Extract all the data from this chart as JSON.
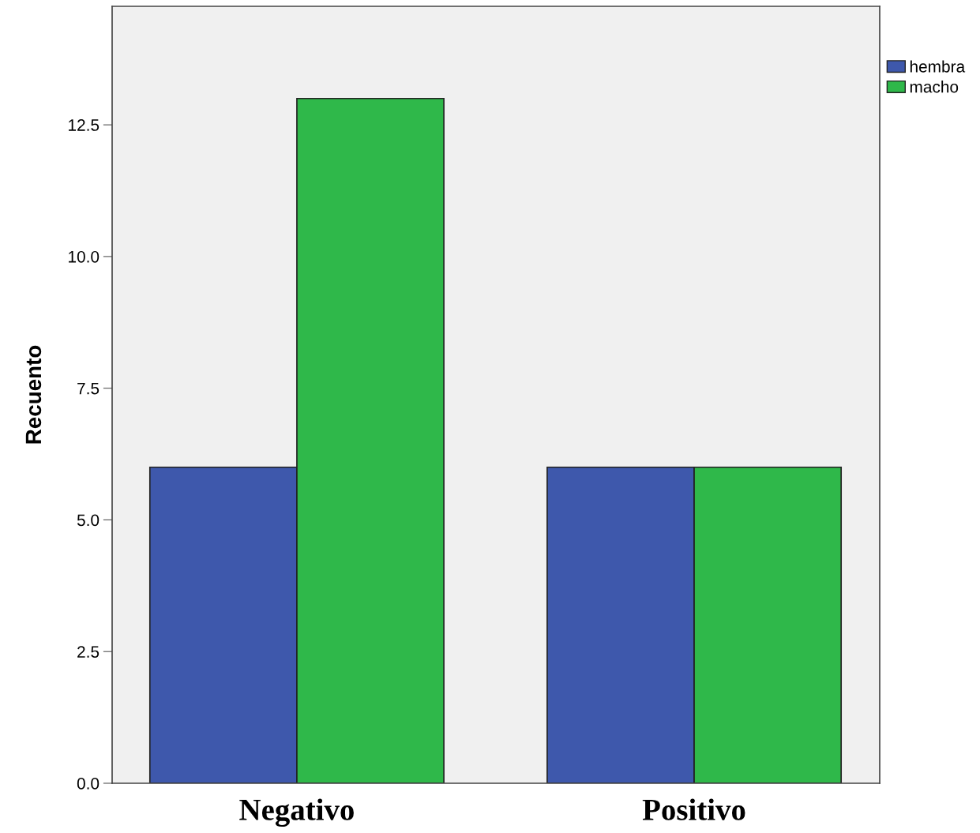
{
  "chart_data": {
    "type": "bar",
    "ylabel": "Recuento",
    "categories": [
      "Negativo",
      "Positivo"
    ],
    "series": [
      {
        "name": "hembra",
        "color": "#3e58ac",
        "values": [
          6,
          6
        ]
      },
      {
        "name": "macho",
        "color": "#2fb84a",
        "values": [
          13,
          6
        ]
      }
    ],
    "ylim": [
      0,
      14.75
    ],
    "yticks": [
      {
        "value": 0,
        "label": "0.0"
      },
      {
        "value": 2.5,
        "label": "2.5"
      },
      {
        "value": 5,
        "label": "5.0"
      },
      {
        "value": 7.5,
        "label": "7.5"
      },
      {
        "value": 10,
        "label": "10.0"
      },
      {
        "value": 12.5,
        "label": "12.5"
      }
    ],
    "grid": false,
    "legend": "top right"
  }
}
